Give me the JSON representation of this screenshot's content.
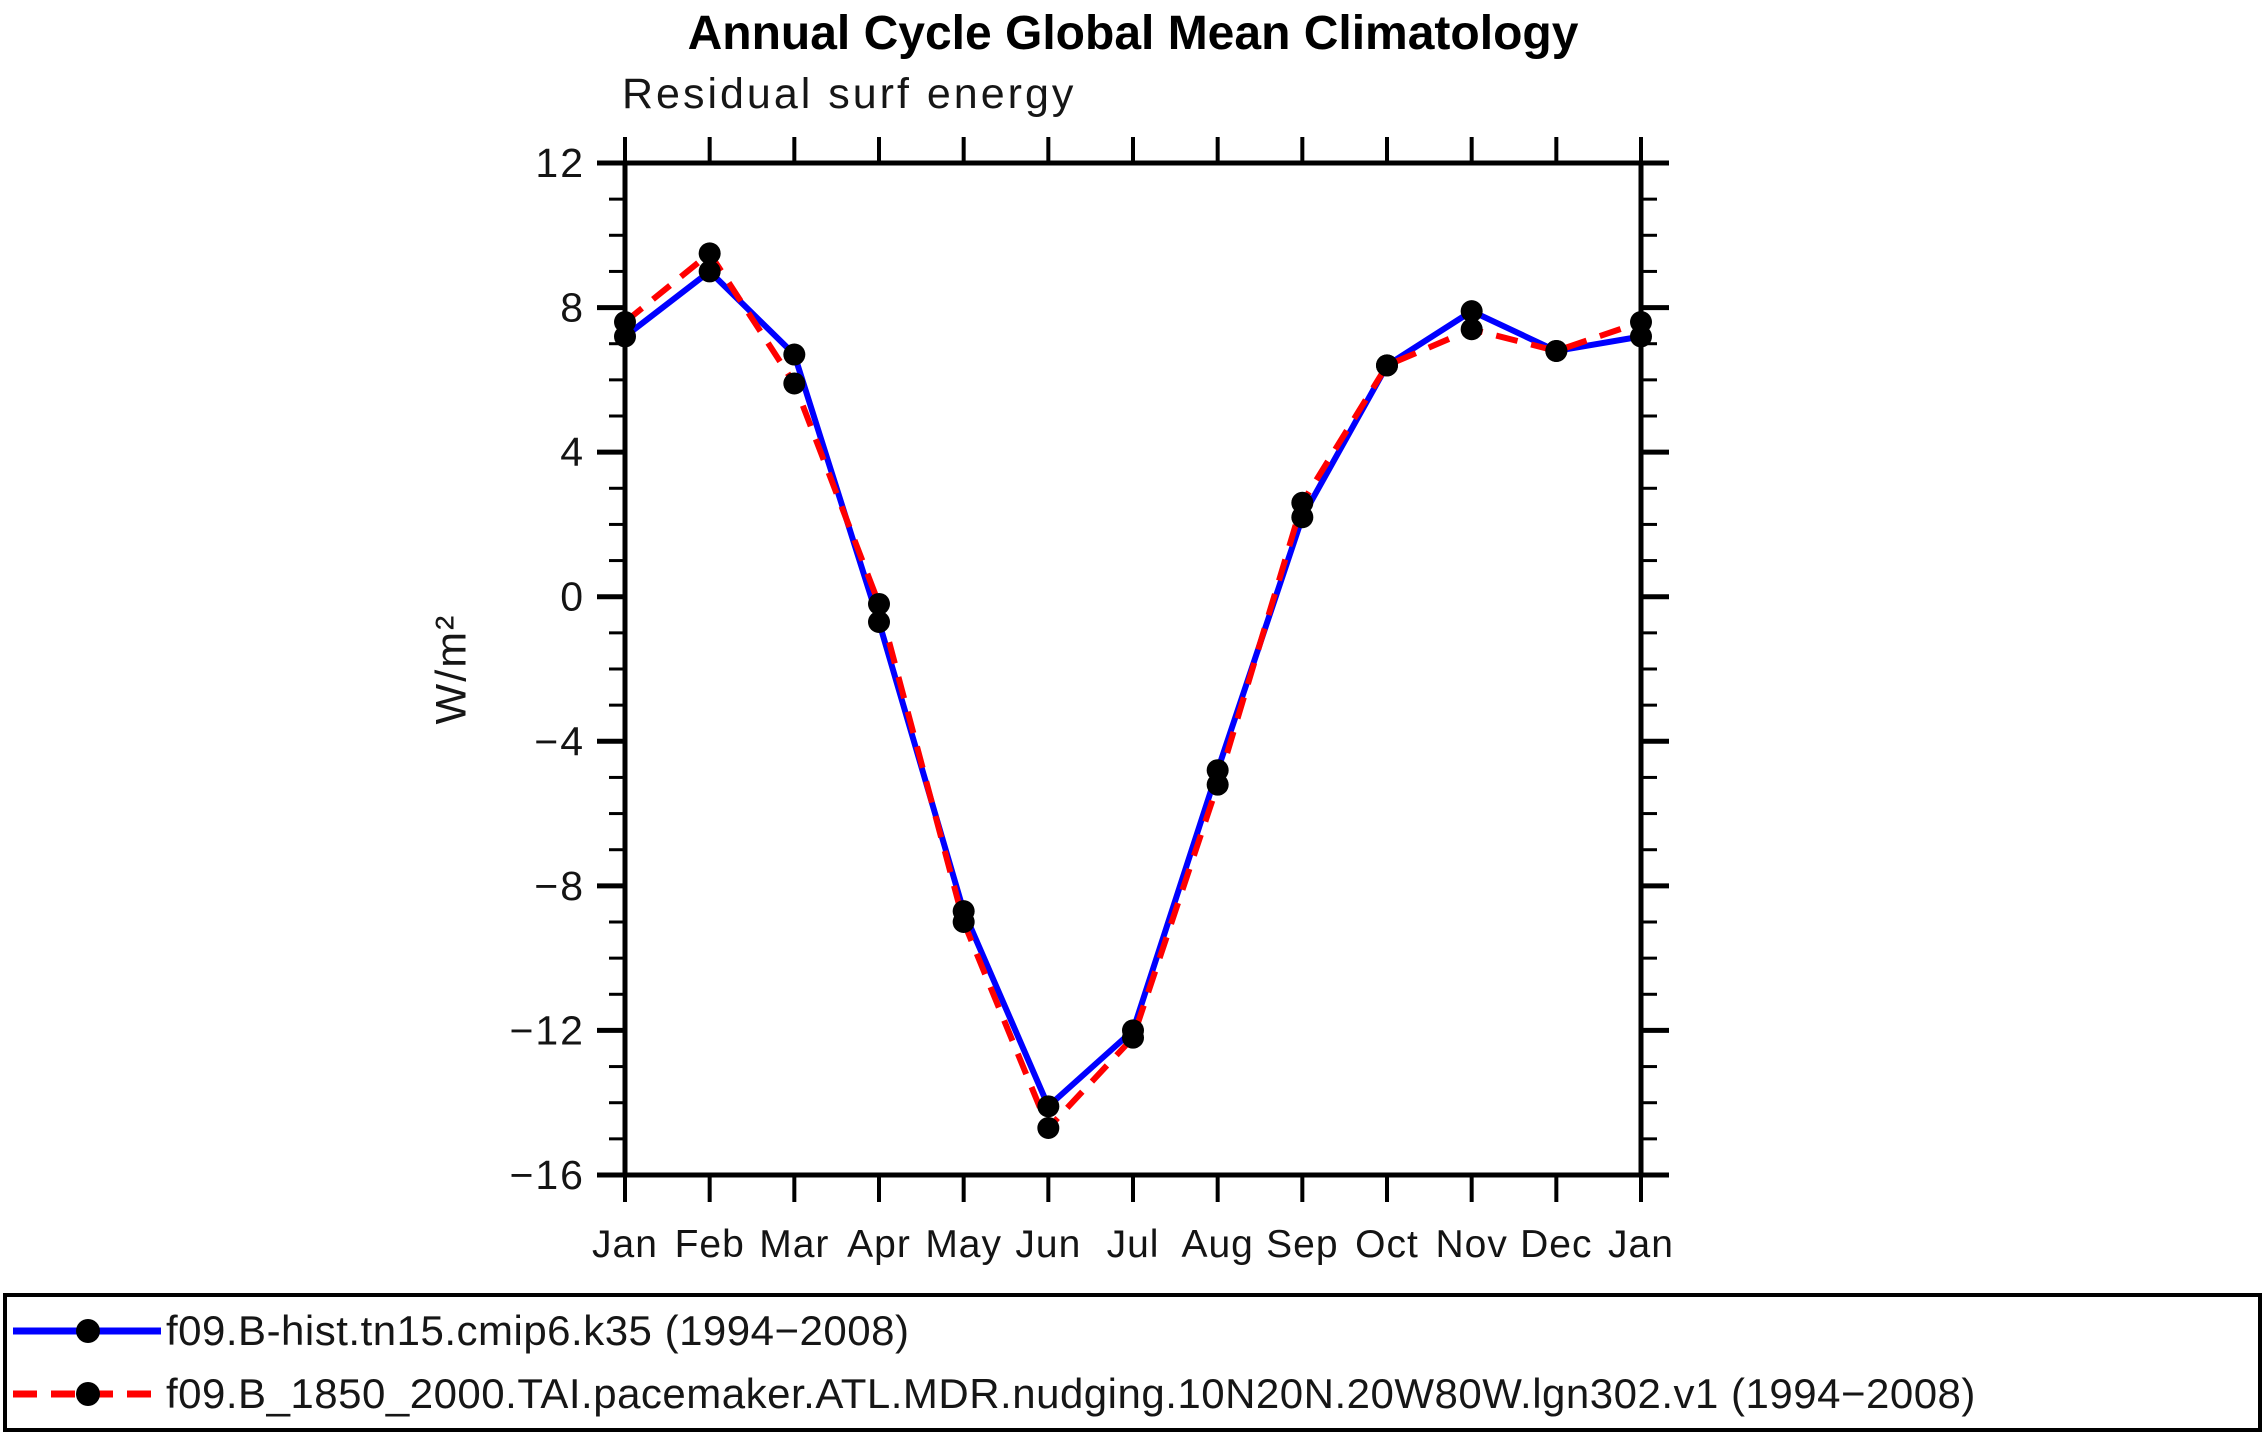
{
  "header": {
    "title": "Annual Cycle Global Mean Climatology"
  },
  "plot": {
    "subtitle": "Residual surf energy",
    "ylabel": "W/m²"
  },
  "chart_data": {
    "type": "line",
    "title": "Annual Cycle Global Mean Climatology",
    "subtitle": "Residual surf energy",
    "ylabel": "W/m²",
    "xlabel": "",
    "x_categories": [
      "Jan",
      "Feb",
      "Mar",
      "Apr",
      "May",
      "Jun",
      "Jul",
      "Aug",
      "Sep",
      "Oct",
      "Nov",
      "Dec",
      "Jan"
    ],
    "ylim": [
      -16,
      12
    ],
    "ytick_major": [
      12,
      8,
      4,
      0,
      -4,
      -8,
      -12,
      -16
    ],
    "ytick_major_labels": [
      "12",
      "8",
      "4",
      "0",
      "−4",
      "−8",
      "−12",
      "−16"
    ],
    "ytick_minor_step": 1,
    "grid": false,
    "frame": "box-with-outward-ticks",
    "axis_color": "#000000",
    "legend_position": "bottom-left-box",
    "series": [
      {
        "name": "f09.B-hist.tn15.cmip6.k35 (1994−2008)",
        "color": "#0000ff",
        "line_style": "solid",
        "marker": "filled-circle",
        "marker_color": "#000000",
        "values": [
          7.2,
          9.0,
          6.7,
          -0.7,
          -8.7,
          -14.1,
          -12.0,
          -4.8,
          2.2,
          6.4,
          7.9,
          6.8,
          7.2
        ]
      },
      {
        "name": "f09.B_1850_2000.TAI.pacemaker.ATL.MDR.nudging.10N20N.20W80W.lgn302.v1 (1994−2008)",
        "color": "#ff0000",
        "line_style": "dashed",
        "marker": "filled-circle",
        "marker_color": "#000000",
        "values": [
          7.6,
          9.5,
          5.9,
          -0.2,
          -9.0,
          -14.7,
          -12.2,
          -5.2,
          2.6,
          6.4,
          7.4,
          6.8,
          7.6
        ]
      }
    ]
  }
}
